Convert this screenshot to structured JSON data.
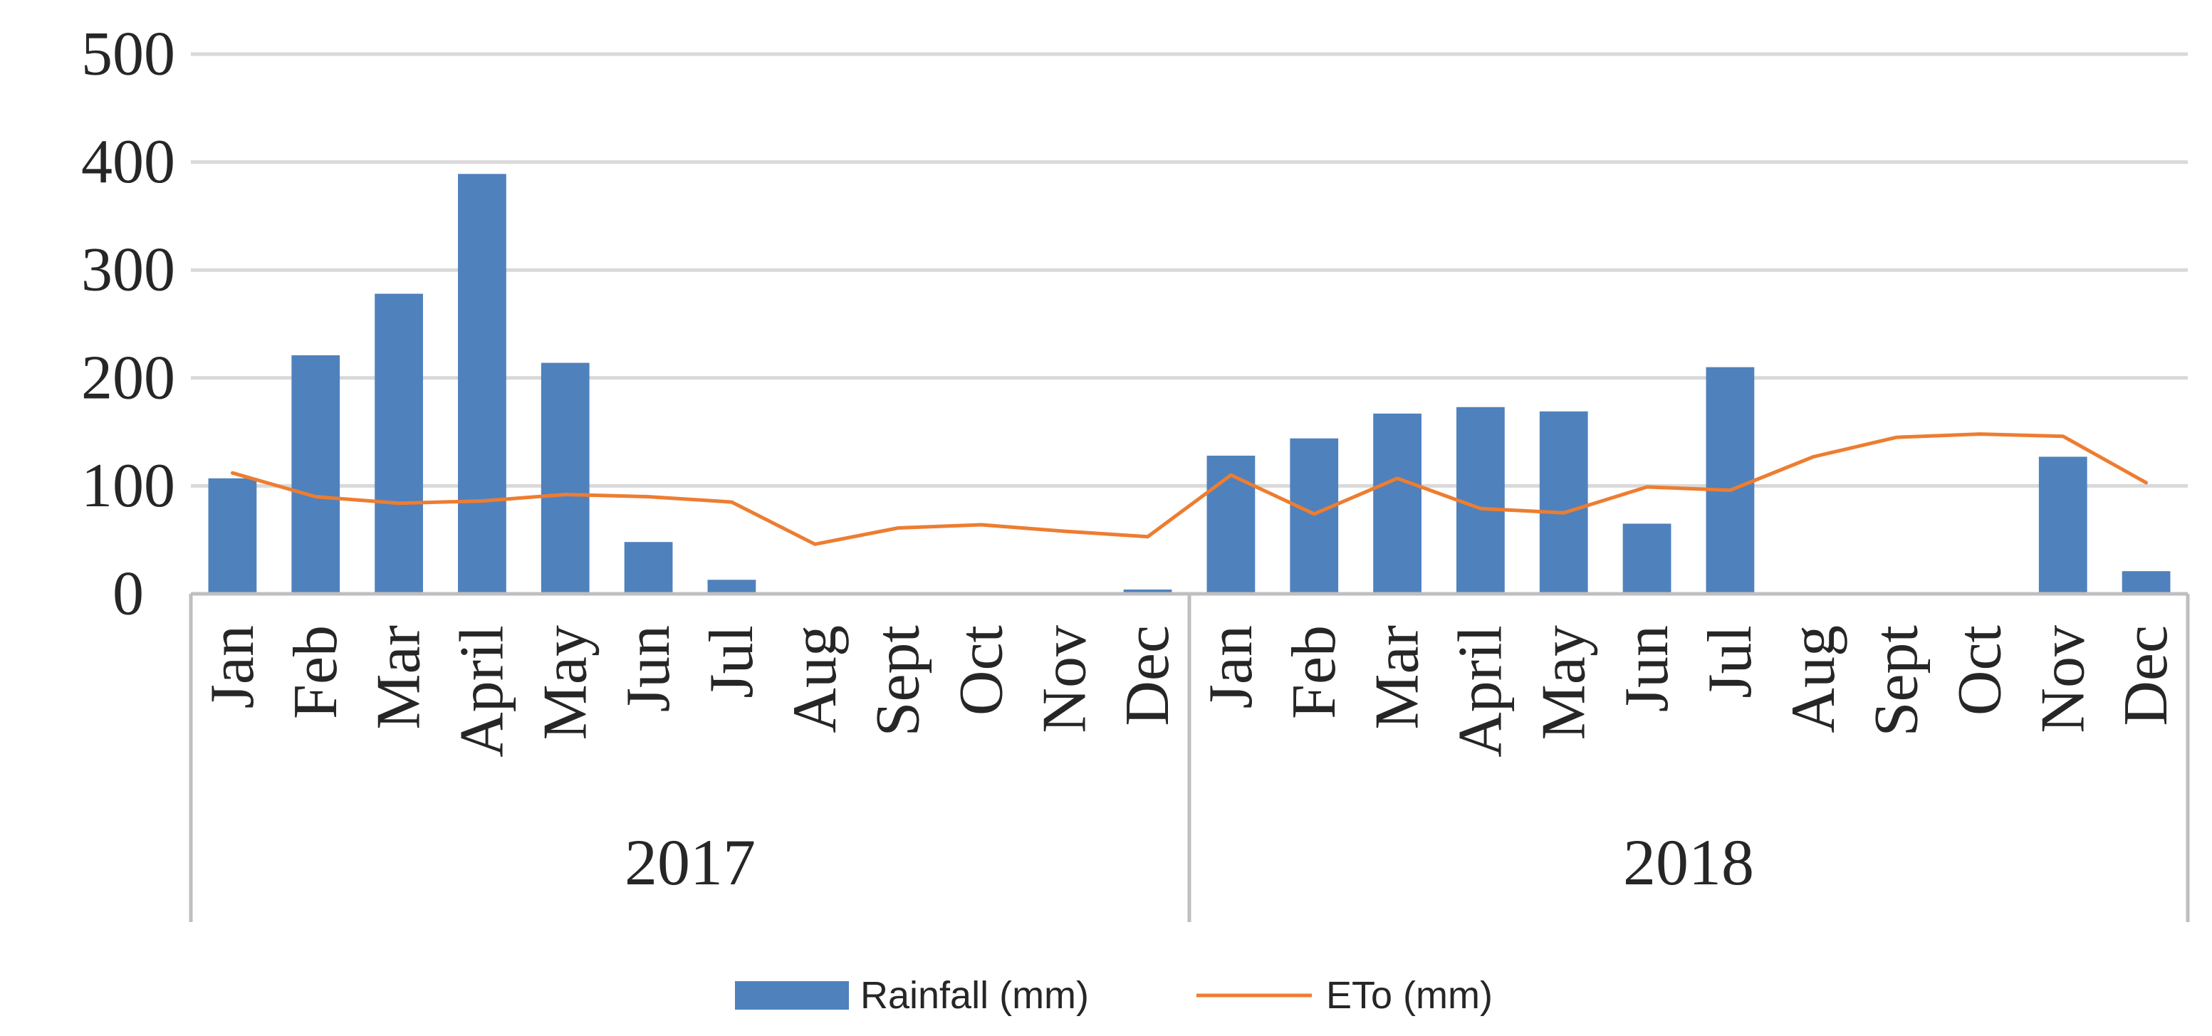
{
  "chart_data": {
    "type": "bar",
    "title": "",
    "xlabel": "",
    "ylabel": "",
    "ylim": [
      0,
      500
    ],
    "yticks": [
      0,
      100,
      200,
      300,
      400,
      500
    ],
    "ytick_labels": [
      "0",
      "100",
      "200",
      "300",
      "400",
      "500"
    ],
    "grid": true,
    "legend_position": "bottom-center",
    "groups": [
      {
        "label": "2017",
        "categories": [
          "Jan",
          "Feb",
          "Mar",
          "April",
          "May",
          "Jun",
          "Jul",
          "Aug",
          "Sept",
          "Oct",
          "Nov",
          "Dec"
        ]
      },
      {
        "label": "2018",
        "categories": [
          "Jan",
          "Feb",
          "Mar",
          "April",
          "May",
          "Jun",
          "Jul",
          "Aug",
          "Sept",
          "Oct",
          "Nov",
          "Dec"
        ]
      }
    ],
    "series": [
      {
        "name": "Rainfall (mm)",
        "type": "bar",
        "color": "#4F81BD",
        "values": [
          107,
          221,
          278,
          389,
          214,
          48,
          13,
          0,
          0,
          0,
          0,
          4,
          128,
          144,
          167,
          173,
          169,
          65,
          210,
          0,
          0,
          0,
          127,
          21
        ]
      },
      {
        "name": "ETo (mm)",
        "type": "line",
        "color": "#ED7D31",
        "values": [
          112,
          90,
          84,
          86,
          92,
          90,
          85,
          46,
          61,
          64,
          58,
          53,
          110,
          74,
          107,
          79,
          75,
          99,
          96,
          127,
          145,
          148,
          146,
          103
        ]
      }
    ]
  },
  "colors": {
    "grid": "#D9D9D9",
    "axis": "#BFBFBF",
    "text": "#262626"
  }
}
